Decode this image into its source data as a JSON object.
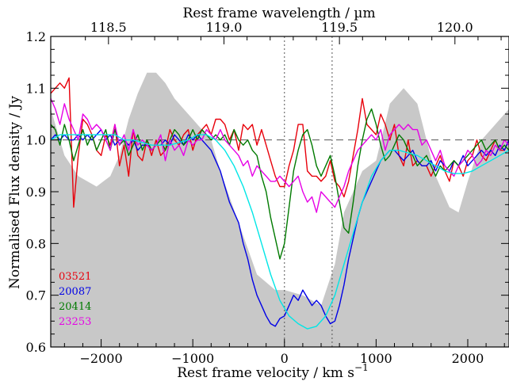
{
  "chart_data": {
    "type": "line",
    "xlabel_bottom": "Rest frame velocity / km s",
    "xlabel_bottom_sup": "−1",
    "xlabel_top": "Rest frame wavelength / µm",
    "ylabel": "Normalised Flux density / Jy",
    "xlim": [
      -2550,
      2450
    ],
    "ylim": [
      0.6,
      1.2
    ],
    "xticks": [
      -2000,
      -1000,
      0,
      1000,
      2000
    ],
    "xtick_labels": [
      "−2000",
      "−1000",
      "0",
      "1000",
      "2000"
    ],
    "yticks": [
      0.6,
      0.7,
      0.8,
      0.9,
      1.0,
      1.1,
      1.2
    ],
    "ytick_labels": [
      "0.6",
      "0.7",
      "0.8",
      "0.9",
      "1.0",
      "1.1",
      "1.2"
    ],
    "top_ticks": [
      {
        "label": "118.5",
        "velocity": -1920
      },
      {
        "label": "119.0",
        "velocity": -660
      },
      {
        "label": "119.5",
        "velocity": 600
      },
      {
        "label": "120.0",
        "velocity": 1860
      }
    ],
    "top_ticks_minor_velocities": [
      -2172,
      -1668,
      -1416,
      -1164,
      -912,
      -408,
      -156,
      96,
      348,
      852,
      1104,
      1356,
      1608,
      2112,
      2364
    ],
    "reference_line_y": 1.0,
    "vertical_lines_x": [
      0,
      520
    ],
    "grey_region": {
      "color": "#c8c8c8",
      "x": [
        -2550,
        -2400,
        -2250,
        -2050,
        -1900,
        -1800,
        -1700,
        -1600,
        -1500,
        -1400,
        -1300,
        -1200,
        -1100,
        -1000,
        -900,
        -800,
        -700,
        -500,
        -300,
        -100,
        0,
        200,
        400,
        550,
        650,
        750,
        850,
        1000,
        1150,
        1300,
        1450,
        1550,
        1650,
        1800,
        1900,
        2000,
        2150,
        2300,
        2450
      ],
      "y": [
        1.06,
        0.97,
        0.93,
        0.91,
        0.93,
        0.97,
        1.04,
        1.09,
        1.13,
        1.13,
        1.11,
        1.08,
        1.06,
        1.04,
        1.02,
        1.0,
        0.94,
        0.84,
        0.74,
        0.71,
        0.71,
        0.7,
        0.68,
        0.76,
        0.86,
        0.9,
        0.94,
        0.96,
        1.07,
        1.1,
        1.07,
        1.0,
        0.93,
        0.87,
        0.86,
        0.92,
        1.0,
        1.03,
        1.06
      ]
    },
    "series": [
      {
        "name": "03521",
        "color": "#e8000b",
        "x": [
          -2550,
          -2500,
          -2450,
          -2400,
          -2350,
          -2300,
          -2250,
          -2200,
          -2150,
          -2100,
          -2050,
          -2000,
          -1950,
          -1900,
          -1850,
          -1800,
          -1750,
          -1700,
          -1650,
          -1600,
          -1550,
          -1500,
          -1450,
          -1400,
          -1350,
          -1300,
          -1250,
          -1200,
          -1150,
          -1100,
          -1050,
          -1000,
          -950,
          -900,
          -850,
          -800,
          -750,
          -700,
          -650,
          -600,
          -550,
          -500,
          -450,
          -400,
          -350,
          -300,
          -250,
          -200,
          -150,
          -100,
          -50,
          0,
          50,
          100,
          150,
          200,
          250,
          300,
          350,
          400,
          450,
          500,
          550,
          600,
          650,
          700,
          750,
          800,
          850,
          900,
          950,
          1000,
          1050,
          1100,
          1150,
          1200,
          1250,
          1300,
          1350,
          1400,
          1450,
          1500,
          1550,
          1600,
          1650,
          1700,
          1750,
          1800,
          1850,
          1900,
          1950,
          2000,
          2050,
          2100,
          2150,
          2200,
          2250,
          2300,
          2350,
          2400,
          2450
        ],
        "y": [
          1.09,
          1.1,
          1.11,
          1.1,
          1.12,
          0.87,
          0.97,
          1.04,
          1.03,
          1.01,
          0.98,
          0.97,
          1.01,
          0.99,
          1.03,
          0.95,
          0.99,
          0.93,
          1.02,
          0.97,
          0.96,
          1.0,
          0.97,
          1.0,
          0.97,
          0.98,
          1.02,
          1.0,
          0.99,
          1.01,
          1.02,
          0.98,
          1.01,
          1.02,
          1.03,
          1.01,
          1.04,
          1.04,
          1.03,
          1.0,
          1.02,
          0.98,
          1.03,
          1.02,
          1.03,
          0.99,
          1.02,
          0.99,
          0.96,
          0.93,
          0.91,
          0.91,
          0.95,
          0.98,
          1.03,
          1.03,
          0.94,
          0.93,
          0.93,
          0.92,
          0.93,
          0.96,
          0.92,
          0.91,
          0.89,
          0.92,
          0.97,
          1.02,
          1.08,
          1.03,
          1.02,
          1.01,
          1.05,
          1.03,
          1.0,
          1.03,
          0.97,
          0.95,
          1.0,
          0.95,
          0.96,
          0.95,
          0.95,
          0.93,
          0.95,
          0.97,
          0.94,
          0.92,
          0.96,
          0.95,
          0.93,
          0.96,
          0.97,
          1.0,
          0.97,
          0.96,
          0.98,
          1.0,
          0.98,
          0.98,
          1.0
        ]
      },
      {
        "name": "20087",
        "color": "#0000e6",
        "x": [
          -2550,
          -2500,
          -2450,
          -2400,
          -2350,
          -2300,
          -2250,
          -2200,
          -2150,
          -2100,
          -2050,
          -2000,
          -1950,
          -1900,
          -1850,
          -1800,
          -1750,
          -1700,
          -1650,
          -1600,
          -1550,
          -1500,
          -1450,
          -1400,
          -1350,
          -1300,
          -1250,
          -1200,
          -1150,
          -1100,
          -1050,
          -1000,
          -950,
          -900,
          -850,
          -800,
          -750,
          -700,
          -650,
          -600,
          -550,
          -500,
          -450,
          -400,
          -350,
          -300,
          -250,
          -200,
          -150,
          -100,
          -50,
          0,
          50,
          100,
          150,
          200,
          250,
          300,
          350,
          400,
          450,
          500,
          550,
          600,
          650,
          700,
          750,
          800,
          850,
          900,
          950,
          1000,
          1050,
          1100,
          1150,
          1200,
          1250,
          1300,
          1350,
          1400,
          1450,
          1500,
          1550,
          1600,
          1650,
          1700,
          1750,
          1800,
          1850,
          1900,
          1950,
          2000,
          2050,
          2100,
          2150,
          2200,
          2250,
          2300,
          2350,
          2400,
          2450
        ],
        "y": [
          1.0,
          1.01,
          1.0,
          1.01,
          1.0,
          1.0,
          1.01,
          1.0,
          1.01,
          1.0,
          1.01,
          1.02,
          1.0,
          1.01,
          0.99,
          1.0,
          1.0,
          0.99,
          1.0,
          0.98,
          0.99,
          0.99,
          0.98,
          0.99,
          0.99,
          1.0,
          0.99,
          1.01,
          1.0,
          0.99,
          1.01,
          1.0,
          1.01,
          1.0,
          0.99,
          0.98,
          0.96,
          0.94,
          0.91,
          0.88,
          0.86,
          0.84,
          0.8,
          0.77,
          0.73,
          0.7,
          0.68,
          0.66,
          0.645,
          0.64,
          0.655,
          0.66,
          0.68,
          0.7,
          0.69,
          0.71,
          0.695,
          0.68,
          0.69,
          0.68,
          0.66,
          0.645,
          0.65,
          0.68,
          0.72,
          0.77,
          0.81,
          0.85,
          0.88,
          0.9,
          0.92,
          0.94,
          0.96,
          0.97,
          0.98,
          0.98,
          0.97,
          0.96,
          0.97,
          0.98,
          0.96,
          0.95,
          0.95,
          0.96,
          0.94,
          0.96,
          0.95,
          0.94,
          0.96,
          0.95,
          0.97,
          0.95,
          0.96,
          0.97,
          0.98,
          0.97,
          0.98,
          0.97,
          0.99,
          0.98,
          1.0
        ]
      },
      {
        "name": "20414",
        "color": "#007a00",
        "x": [
          -2550,
          -2500,
          -2450,
          -2400,
          -2350,
          -2300,
          -2250,
          -2200,
          -2150,
          -2100,
          -2050,
          -2000,
          -1950,
          -1900,
          -1850,
          -1800,
          -1750,
          -1700,
          -1650,
          -1600,
          -1550,
          -1500,
          -1450,
          -1400,
          -1350,
          -1300,
          -1250,
          -1200,
          -1150,
          -1100,
          -1050,
          -1000,
          -950,
          -900,
          -850,
          -800,
          -750,
          -700,
          -650,
          -600,
          -550,
          -500,
          -450,
          -400,
          -350,
          -300,
          -250,
          -200,
          -150,
          -100,
          -50,
          0,
          50,
          100,
          150,
          200,
          250,
          300,
          350,
          400,
          450,
          500,
          550,
          600,
          650,
          700,
          750,
          800,
          850,
          900,
          950,
          1000,
          1050,
          1100,
          1150,
          1200,
          1250,
          1300,
          1350,
          1400,
          1450,
          1500,
          1550,
          1600,
          1650,
          1700,
          1750,
          1800,
          1850,
          1900,
          1950,
          2000,
          2050,
          2100,
          2150,
          2200,
          2250,
          2300,
          2350,
          2400,
          2450
        ],
        "y": [
          1.03,
          1.02,
          0.99,
          1.03,
          1.0,
          0.96,
          0.99,
          1.02,
          0.99,
          1.01,
          0.98,
          1.0,
          1.02,
          0.98,
          1.02,
          0.99,
          1.0,
          0.97,
          0.99,
          1.01,
          0.98,
          1.0,
          0.98,
          0.99,
          1.0,
          0.98,
          1.0,
          1.02,
          1.01,
          0.99,
          1.0,
          1.02,
          1.0,
          1.02,
          1.01,
          1.0,
          1.01,
          1.0,
          1.01,
          0.99,
          1.02,
          1.0,
          0.99,
          1.0,
          0.98,
          0.97,
          0.93,
          0.9,
          0.85,
          0.81,
          0.77,
          0.8,
          0.87,
          0.94,
          0.98,
          1.01,
          1.02,
          0.99,
          0.95,
          0.93,
          0.95,
          0.97,
          0.93,
          0.88,
          0.83,
          0.82,
          0.88,
          0.95,
          1.0,
          1.04,
          1.06,
          1.03,
          0.99,
          0.96,
          0.97,
          0.99,
          1.01,
          1.0,
          0.98,
          0.97,
          0.95,
          0.96,
          0.97,
          0.95,
          0.93,
          0.95,
          0.94,
          0.95,
          0.96,
          0.95,
          0.96,
          0.97,
          0.98,
          0.99,
          1.0,
          0.98,
          0.99,
          1.0,
          0.98,
          0.99,
          0.98
        ]
      },
      {
        "name": "23253",
        "color": "#e600e6",
        "x": [
          -2550,
          -2500,
          -2450,
          -2400,
          -2350,
          -2300,
          -2250,
          -2200,
          -2150,
          -2100,
          -2050,
          -2000,
          -1950,
          -1900,
          -1850,
          -1800,
          -1750,
          -1700,
          -1650,
          -1600,
          -1550,
          -1500,
          -1450,
          -1400,
          -1350,
          -1300,
          -1250,
          -1200,
          -1150,
          -1100,
          -1050,
          -1000,
          -950,
          -900,
          -850,
          -800,
          -750,
          -700,
          -650,
          -600,
          -550,
          -500,
          -450,
          -400,
          -350,
          -300,
          -250,
          -200,
          -150,
          -100,
          -50,
          0,
          50,
          100,
          150,
          200,
          250,
          300,
          350,
          400,
          450,
          500,
          550,
          600,
          650,
          700,
          750,
          800,
          850,
          900,
          950,
          1000,
          1050,
          1100,
          1150,
          1200,
          1250,
          1300,
          1350,
          1400,
          1450,
          1500,
          1550,
          1600,
          1650,
          1700,
          1750,
          1800,
          1850,
          1900,
          1950,
          2000,
          2050,
          2100,
          2150,
          2200,
          2250,
          2300,
          2350,
          2400,
          2450
        ],
        "y": [
          1.08,
          1.06,
          1.03,
          1.07,
          1.04,
          1.02,
          1.0,
          1.05,
          1.04,
          1.02,
          1.03,
          1.02,
          1.0,
          0.98,
          1.03,
          0.99,
          1.01,
          0.98,
          1.02,
          0.99,
          1.0,
          0.99,
          0.98,
          0.99,
          1.01,
          0.96,
          1.0,
          0.98,
          0.99,
          0.97,
          1.0,
          0.99,
          1.0,
          1.0,
          1.02,
          1.01,
          1.0,
          1.02,
          1.0,
          0.99,
          0.98,
          0.97,
          0.95,
          0.96,
          0.93,
          0.95,
          0.94,
          0.93,
          0.92,
          0.92,
          0.93,
          0.92,
          0.91,
          0.92,
          0.93,
          0.9,
          0.88,
          0.89,
          0.86,
          0.9,
          0.89,
          0.88,
          0.87,
          0.89,
          0.91,
          0.94,
          0.96,
          0.98,
          0.99,
          1.0,
          1.01,
          1.0,
          1.02,
          0.98,
          1.01,
          1.02,
          1.03,
          1.02,
          1.03,
          1.02,
          1.02,
          0.99,
          1.0,
          0.98,
          0.96,
          0.98,
          0.95,
          0.94,
          0.93,
          0.95,
          0.96,
          0.98,
          0.97,
          0.95,
          0.96,
          0.98,
          0.97,
          0.99,
          0.98,
          1.0,
          0.99
        ]
      },
      {
        "name": "",
        "color": "#00e6e6",
        "x": [
          -2550,
          -2450,
          -2350,
          -2250,
          -2150,
          -2050,
          -1950,
          -1850,
          -1750,
          -1650,
          -1550,
          -1450,
          -1350,
          -1250,
          -1150,
          -1050,
          -950,
          -850,
          -750,
          -650,
          -550,
          -450,
          -350,
          -250,
          -150,
          -50,
          50,
          150,
          250,
          350,
          450,
          550,
          650,
          750,
          850,
          950,
          1050,
          1150,
          1250,
          1350,
          1450,
          1550,
          1650,
          1750,
          1850,
          1950,
          2050,
          2150,
          2250,
          2350,
          2450
        ],
        "y": [
          1.0,
          1.01,
          1.01,
          1.01,
          1.01,
          1.01,
          1.01,
          1.01,
          1.0,
          1.0,
          0.995,
          0.99,
          0.99,
          0.99,
          0.995,
          1.0,
          1.01,
          1.01,
          1.0,
          0.98,
          0.95,
          0.91,
          0.86,
          0.8,
          0.74,
          0.69,
          0.66,
          0.645,
          0.635,
          0.64,
          0.66,
          0.7,
          0.76,
          0.82,
          0.88,
          0.93,
          0.96,
          0.98,
          0.98,
          0.975,
          0.97,
          0.96,
          0.95,
          0.94,
          0.935,
          0.935,
          0.94,
          0.95,
          0.96,
          0.97,
          0.98
        ]
      }
    ]
  }
}
